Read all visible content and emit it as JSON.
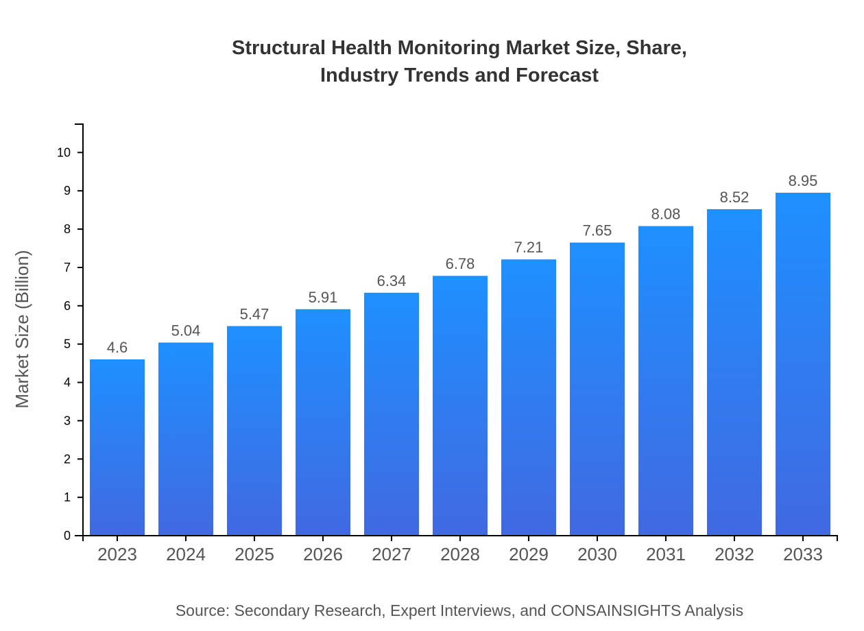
{
  "chart_data": {
    "type": "bar",
    "title_lines": [
      "Structural Health Monitoring Market Size, Share,",
      "Industry Trends and Forecast"
    ],
    "xlabel": "",
    "ylabel": "Market Size (Billion)",
    "categories": [
      "2023",
      "2024",
      "2025",
      "2026",
      "2027",
      "2028",
      "2029",
      "2030",
      "2031",
      "2032",
      "2033"
    ],
    "values": [
      4.6,
      5.04,
      5.47,
      5.91,
      6.34,
      6.78,
      7.21,
      7.65,
      8.08,
      8.52,
      8.95
    ],
    "ylim": [
      0,
      10.74
    ],
    "yticks": [
      0,
      1,
      2,
      3,
      4,
      5,
      6,
      7,
      8,
      9,
      10
    ],
    "grid": false,
    "bar_gradient": {
      "top": "#1e90ff",
      "bottom": "#4169e1"
    },
    "source": "Source: Secondary Research, Expert Interviews, and CONSAINSIGHTS Analysis"
  }
}
